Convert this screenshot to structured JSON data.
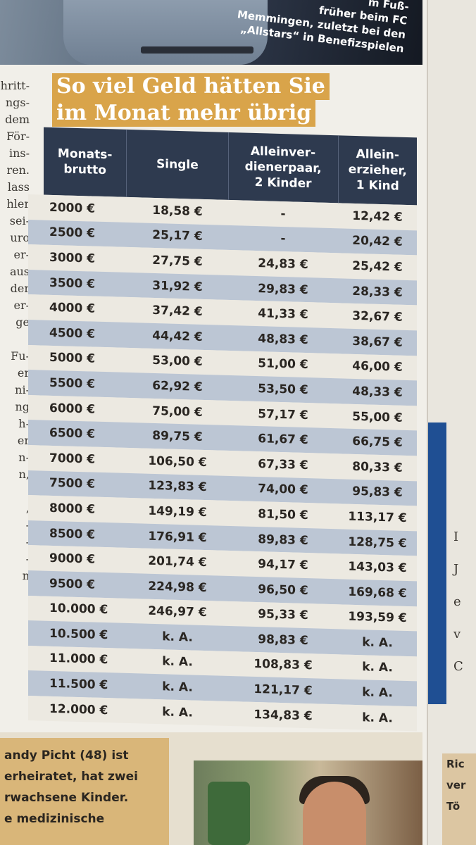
{
  "top": {
    "caption": [
      "m Fuß-",
      "früher beim FC",
      "Memmingen, zuletzt bei den",
      "„Allstars“ in Benefizspielen"
    ]
  },
  "left_column": [
    "hritt-",
    "ngs-",
    "dem",
    "För-",
    "ins-",
    "ren.",
    "lass",
    "hler",
    "sei-",
    "uro",
    "er-",
    "aus",
    "der",
    "er-",
    "ge",
    "",
    "Fu-",
    "er",
    "ni-",
    "ng",
    "h-",
    "er",
    "n-",
    "n,",
    "",
    ",",
    "-",
    "-",
    "-",
    "n"
  ],
  "headline": [
    "So viel Geld hätten Sie",
    "im Monat mehr übrig"
  ],
  "table": {
    "headers": [
      "Monats-\nbrutto",
      "Single",
      "Alleinver-\ndienerpaar,\n2 Kinder",
      "Allein-\nerzieher,\n1 Kind"
    ],
    "rows": [
      [
        "2000 €",
        "18,58 €",
        "-",
        "12,42 €"
      ],
      [
        "2500 €",
        "25,17 €",
        "-",
        "20,42 €"
      ],
      [
        "3000 €",
        "27,75 €",
        "24,83 €",
        "25,42 €"
      ],
      [
        "3500 €",
        "31,92 €",
        "29,83 €",
        "28,33 €"
      ],
      [
        "4000 €",
        "37,42 €",
        "41,33 €",
        "32,67 €"
      ],
      [
        "4500 €",
        "44,42 €",
        "48,83 €",
        "38,67 €"
      ],
      [
        "5000 €",
        "53,00 €",
        "51,00 €",
        "46,00 €"
      ],
      [
        "5500 €",
        "62,92 €",
        "53,50 €",
        "48,33 €"
      ],
      [
        "6000 €",
        "75,00 €",
        "57,17 €",
        "55,00 €"
      ],
      [
        "6500 €",
        "89,75 €",
        "61,67 €",
        "66,75 €"
      ],
      [
        "7000 €",
        "106,50 €",
        "67,33 €",
        "80,33 €"
      ],
      [
        "7500 €",
        "123,83 €",
        "74,00 €",
        "95,83 €"
      ],
      [
        "8000 €",
        "149,19 €",
        "81,50 €",
        "113,17 €"
      ],
      [
        "8500 €",
        "176,91 €",
        "89,83 €",
        "128,75 €"
      ],
      [
        "9000 €",
        "201,74 €",
        "94,17 €",
        "143,03 €"
      ],
      [
        "9500 €",
        "224,98 €",
        "96,50 €",
        "169,68 €"
      ],
      [
        "10.000 €",
        "246,97 €",
        "95,33 €",
        "193,59 €"
      ],
      [
        "10.500 €",
        "k. A.",
        "98,83 €",
        "k. A."
      ],
      [
        "11.000 €",
        "k. A.",
        "108,83 €",
        "k. A."
      ],
      [
        "11.500 €",
        "k. A.",
        "121,17 €",
        "k. A."
      ],
      [
        "12.000 €",
        "k. A.",
        "134,83 €",
        "k. A."
      ]
    ]
  },
  "bio": [
    "andy Picht (48) ist",
    "erheiratet, hat zwei",
    "rwachsene Kinder.",
    "e medizinische"
  ],
  "right_column": {
    "letters": [
      "I",
      "J",
      "e",
      "v",
      "C"
    ],
    "bottom": [
      "Ric",
      "ver",
      "Tö"
    ]
  },
  "colors": {
    "header_bg": "#2e3a4f",
    "stripe_bg": "#bcc6d4",
    "headline_bg": "#d9a44a",
    "bio_bg": "#d9b679",
    "margin_blue": "#1f4f93"
  }
}
